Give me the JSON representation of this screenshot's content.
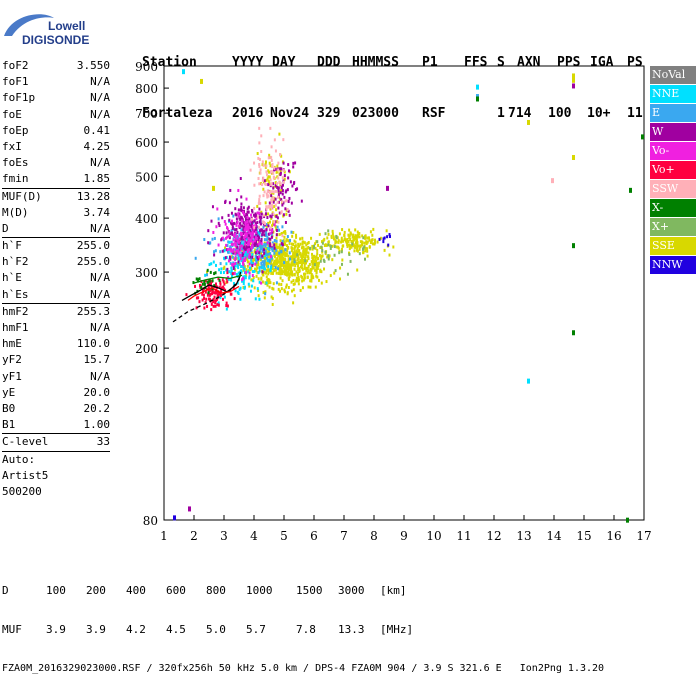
{
  "logo": {
    "line1": "Lowell",
    "line2": "DIGISONDE"
  },
  "header": {
    "labels": [
      "Station",
      "YYYY",
      "DAY",
      "DDD",
      "HHMMSS",
      "P1",
      "FFS",
      "S",
      "AXN",
      "PPS",
      "IGA",
      "PS"
    ],
    "values": [
      "Fortaleza",
      "2016",
      "Nov24",
      "329",
      "023000",
      "RSF",
      "1",
      "714",
      "100",
      "10+",
      "11"
    ]
  },
  "params": [
    {
      "name": "foF2",
      "value": "3.550"
    },
    {
      "name": "foF1",
      "value": "N/A"
    },
    {
      "name": "foF1p",
      "value": "N/A"
    },
    {
      "name": "foE",
      "value": "N/A"
    },
    {
      "name": "foEp",
      "value": "0.41"
    },
    {
      "name": "fxI",
      "value": "4.25"
    },
    {
      "name": "foEs",
      "value": "N/A"
    },
    {
      "name": "fmin",
      "value": "1.85",
      "sep": true
    },
    {
      "name": "MUF(D)",
      "value": "13.28"
    },
    {
      "name": "M(D)",
      "value": "3.74"
    },
    {
      "name": "D",
      "value": "N/A",
      "sep": true
    },
    {
      "name": "h`F",
      "value": "255.0"
    },
    {
      "name": "h`F2",
      "value": "255.0"
    },
    {
      "name": "h`E",
      "value": "N/A"
    },
    {
      "name": "h`Es",
      "value": "N/A",
      "sep": true
    },
    {
      "name": "hmF2",
      "value": "255.3"
    },
    {
      "name": "hmF1",
      "value": "N/A"
    },
    {
      "name": "hmE",
      "value": "110.0"
    },
    {
      "name": "yF2",
      "value": "15.7"
    },
    {
      "name": "yF1",
      "value": "N/A"
    },
    {
      "name": "yE",
      "value": "20.0"
    },
    {
      "name": "B0",
      "value": "20.2"
    },
    {
      "name": "B1",
      "value": "1.00",
      "sep": true
    },
    {
      "name": "C-level",
      "value": "33",
      "sep": true
    },
    {
      "name": "Auto:",
      "value": ""
    },
    {
      "name": "Artist5",
      "value": ""
    },
    {
      "name": "500200",
      "value": ""
    }
  ],
  "legend": [
    {
      "label": "NoVal",
      "color": "#808080"
    },
    {
      "label": "NNE",
      "color": "#00e0ff"
    },
    {
      "label": "E",
      "color": "#3aa8f0"
    },
    {
      "label": "W",
      "color": "#a000a0"
    },
    {
      "label": "Vo-",
      "color": "#f020e0"
    },
    {
      "label": "Vo+",
      "color": "#ff0040"
    },
    {
      "label": "SSW",
      "color": "#ffb0b8"
    },
    {
      "label": "X-",
      "color": "#008000"
    },
    {
      "label": "X+",
      "color": "#80b860"
    },
    {
      "label": "SSE",
      "color": "#d8d800"
    },
    {
      "label": "NNW",
      "color": "#2000e0"
    }
  ],
  "chart_data": {
    "type": "scatter",
    "xlim": [
      1,
      17
    ],
    "ylim": [
      80,
      900
    ],
    "x_ticks": [
      "1",
      "2",
      "3",
      "4",
      "5",
      "6",
      "7",
      "8",
      "9",
      "10",
      "11",
      "12",
      "13",
      "14",
      "15",
      "16",
      "17"
    ],
    "y_ticks": [
      "80",
      "200",
      "300",
      "400",
      "500",
      "600",
      "700",
      "800",
      "900"
    ],
    "ytick_values": [
      80,
      200,
      300,
      400,
      500,
      600,
      700,
      800,
      900
    ],
    "y_scale": "log",
    "grid": false,
    "clusters": [
      {
        "series": "SSE",
        "cx": 5.0,
        "cy": 320,
        "sx": 1.3,
        "sy": 35,
        "n": 700
      },
      {
        "series": "SSE",
        "cx": 7.2,
        "cy": 355,
        "sx": 0.9,
        "sy": 18,
        "n": 160
      },
      {
        "series": "SSE",
        "cx": 4.6,
        "cy": 470,
        "sx": 0.4,
        "sy": 90,
        "n": 90
      },
      {
        "series": "E",
        "cx": 3.9,
        "cy": 345,
        "sx": 1.0,
        "sy": 40,
        "n": 260
      },
      {
        "series": "NNE",
        "cx": 3.5,
        "cy": 310,
        "sx": 0.9,
        "sy": 40,
        "n": 120
      },
      {
        "series": "W",
        "cx": 3.8,
        "cy": 380,
        "sx": 0.8,
        "sy": 50,
        "n": 260
      },
      {
        "series": "W",
        "cx": 4.9,
        "cy": 470,
        "sx": 0.5,
        "sy": 60,
        "n": 70
      },
      {
        "series": "Vo-",
        "cx": 3.6,
        "cy": 360,
        "sx": 0.7,
        "sy": 55,
        "n": 160
      },
      {
        "series": "Vo+",
        "cx": 2.6,
        "cy": 270,
        "sx": 0.6,
        "sy": 20,
        "n": 110
      },
      {
        "series": "SSW",
        "cx": 4.5,
        "cy": 470,
        "sx": 0.5,
        "sy": 110,
        "n": 110
      },
      {
        "series": "X-",
        "cx": 2.4,
        "cy": 285,
        "sx": 0.5,
        "sy": 15,
        "n": 25
      },
      {
        "series": "X+",
        "cx": 6.5,
        "cy": 340,
        "sx": 1.3,
        "sy": 25,
        "n": 40
      },
      {
        "series": "NNW",
        "cx": 8.3,
        "cy": 360,
        "sx": 0.3,
        "sy": 12,
        "n": 8
      }
    ],
    "isolated_points": [
      {
        "series": "NNE",
        "x": 1.6,
        "y": 885
      },
      {
        "series": "NNE",
        "x": 11.4,
        "y": 815
      },
      {
        "series": "E",
        "x": 11.4,
        "y": 775
      },
      {
        "series": "X-",
        "x": 11.4,
        "y": 765
      },
      {
        "series": "W",
        "x": 14.6,
        "y": 820
      },
      {
        "series": "SSE",
        "x": 14.6,
        "y": 865
      },
      {
        "series": "SSE",
        "x": 14.6,
        "y": 845
      },
      {
        "series": "X-",
        "x": 16.9,
        "y": 625
      },
      {
        "series": "X-",
        "x": 16.5,
        "y": 470
      },
      {
        "series": "SSE",
        "x": 14.6,
        "y": 560
      },
      {
        "series": "X-",
        "x": 14.6,
        "y": 350
      },
      {
        "series": "X-",
        "x": 14.6,
        "y": 220
      },
      {
        "series": "NNE",
        "x": 13.1,
        "y": 170
      },
      {
        "series": "SSE",
        "x": 13.1,
        "y": 675
      },
      {
        "series": "W",
        "x": 8.4,
        "y": 475
      },
      {
        "series": "NNW",
        "x": 1.3,
        "y": 82
      },
      {
        "series": "W",
        "x": 1.8,
        "y": 86
      },
      {
        "series": "X-",
        "x": 16.4,
        "y": 81
      },
      {
        "series": "SSW",
        "x": 13.9,
        "y": 495
      },
      {
        "series": "SSE",
        "x": 2.6,
        "y": 475
      },
      {
        "series": "SSE",
        "x": 2.2,
        "y": 840
      }
    ],
    "traces": [
      {
        "name": "fit-dashed",
        "style": "dashed",
        "color": "#000000",
        "points": [
          [
            1.3,
            230
          ],
          [
            1.8,
            243
          ],
          [
            2.3,
            252
          ],
          [
            2.8,
            262
          ],
          [
            3.2,
            272
          ],
          [
            3.5,
            288
          ],
          [
            3.55,
            300
          ]
        ]
      },
      {
        "name": "fit-solid",
        "style": "solid",
        "color": "#000000",
        "points": [
          [
            1.6,
            258
          ],
          [
            1.9,
            265
          ],
          [
            2.2,
            272
          ],
          [
            2.5,
            280
          ],
          [
            2.8,
            276
          ],
          [
            3.1,
            270
          ],
          [
            3.4,
            280
          ],
          [
            3.55,
            295
          ]
        ]
      },
      {
        "name": "o-trace",
        "style": "solid",
        "color": "#ff0000",
        "points": [
          [
            1.8,
            258
          ],
          [
            2.0,
            264
          ],
          [
            2.3,
            270
          ],
          [
            2.6,
            276
          ],
          [
            2.9,
            268
          ],
          [
            3.2,
            270
          ],
          [
            3.5,
            278
          ]
        ]
      },
      {
        "name": "x-trace",
        "style": "solid",
        "color": "#008000",
        "points": [
          [
            2.0,
            283
          ],
          [
            2.4,
            288
          ],
          [
            2.8,
            292
          ],
          [
            3.2,
            290
          ],
          [
            3.6,
            295
          ]
        ]
      }
    ]
  },
  "footer": {
    "d_label": "D",
    "d_values": [
      "100",
      "200",
      "400",
      "600",
      "800",
      "1000",
      "1500",
      "3000",
      "[km]"
    ],
    "muf_label": "MUF",
    "muf_values": [
      "3.9",
      "3.9",
      "4.2",
      "4.5",
      "5.0",
      "5.7",
      "7.8",
      "13.3",
      "[MHz]"
    ],
    "file_line": "FZA0M_2016329023000.RSF / 320fx256h 50 kHz 5.0 km / DPS-4 FZA0M 904 / 3.9 S 321.6 E   Ion2Png 1.3.20"
  }
}
